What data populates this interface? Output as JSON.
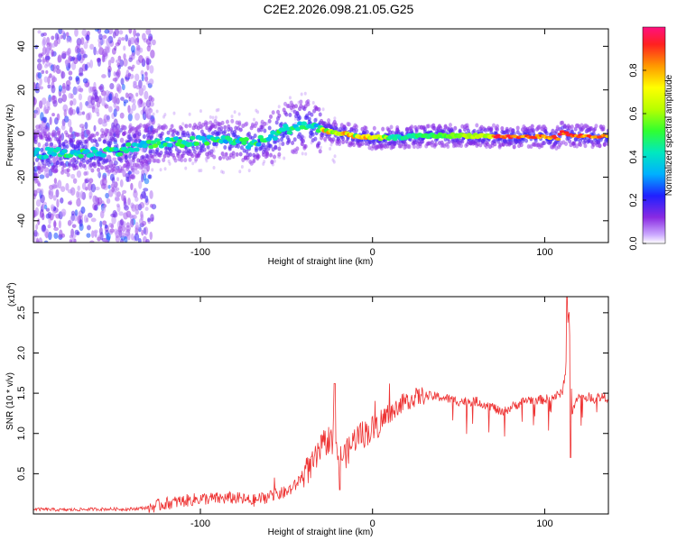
{
  "title": "C2E2.2026.098.21.05.G25",
  "chart_data": [
    {
      "type": "heatmap",
      "title": "C2E2.2026.098.21.05.G25",
      "xlabel": "Height of straight line (km)",
      "ylabel": "Frequency (Hz)",
      "xlim": [
        -197,
        137
      ],
      "ylim": [
        -50,
        48
      ],
      "x_ticks": [
        -100,
        0,
        100
      ],
      "y_ticks": [
        -40,
        -20,
        0,
        20,
        40
      ],
      "x_tick_labels": [
        "-100",
        "0",
        "100"
      ],
      "y_tick_labels": [
        "-40",
        "-20",
        "0",
        "20",
        "40"
      ],
      "colorbar": {
        "label": "Normalized spectral amplitude",
        "range": [
          0,
          1
        ],
        "ticks": [
          0.0,
          0.2,
          0.4,
          0.6,
          0.8
        ],
        "tick_labels": [
          "0.0",
          "0.2",
          "0.4",
          "0.6",
          "0.8"
        ]
      },
      "ridge": {
        "x": [
          -197,
          -170,
          -150,
          -130,
          -110,
          -90,
          -80,
          -70,
          -60,
          -50,
          -40,
          -30,
          -25,
          -20,
          -10,
          0,
          10,
          30,
          60,
          80,
          100,
          108,
          110,
          115,
          137
        ],
        "freq": [
          -9,
          -9,
          -8,
          -5,
          -4,
          -3,
          -3,
          -5,
          -2,
          2,
          4,
          2,
          1,
          0,
          -1,
          -2,
          -2,
          -1,
          -1,
          -1.5,
          -1.5,
          -2,
          1,
          -1,
          -1.5
        ]
      }
    },
    {
      "type": "line",
      "xlabel": "Height of straight line (km)",
      "ylabel": "SNR (10 * v/v)",
      "y_multiplier_label": "(x10",
      "y_multiplier_exp": "4",
      "y_multiplier_close": ")",
      "xlim": [
        -197,
        137
      ],
      "ylim": [
        0,
        2.7
      ],
      "x_ticks": [
        -100,
        0,
        100
      ],
      "y_ticks": [
        0.5,
        1.0,
        1.5,
        2.0,
        2.5
      ],
      "x_tick_labels": [
        "-100",
        "0",
        "100"
      ],
      "y_tick_labels": [
        "0.5",
        "1.0",
        "1.5",
        "2.0",
        "2.5"
      ],
      "series": [
        {
          "name": "SNR",
          "color": "#ee3333",
          "x": [
            -197,
            -180,
            -160,
            -140,
            -130,
            -120,
            -110,
            -100,
            -90,
            -80,
            -70,
            -60,
            -50,
            -45,
            -40,
            -35,
            -30,
            -25,
            -22,
            -20,
            -15,
            -10,
            -5,
            0,
            5,
            10,
            15,
            20,
            25,
            30,
            40,
            50,
            60,
            70,
            75,
            80,
            90,
            100,
            105,
            110,
            112,
            114,
            116,
            118,
            120,
            130,
            137
          ],
          "values": [
            0.06,
            0.05,
            0.06,
            0.06,
            0.08,
            0.13,
            0.16,
            0.19,
            0.19,
            0.2,
            0.16,
            0.22,
            0.27,
            0.35,
            0.5,
            0.6,
            0.8,
            0.95,
            0.8,
            0.7,
            0.75,
            0.95,
            1.0,
            1.05,
            1.15,
            1.25,
            1.35,
            1.4,
            1.45,
            1.47,
            1.45,
            1.4,
            1.4,
            1.33,
            1.25,
            1.32,
            1.42,
            1.42,
            1.45,
            1.5,
            1.75,
            2.6,
            1.2,
            1.45,
            1.45,
            1.45,
            1.45
          ],
          "spikes": [
            {
              "x": -22,
              "value": 1.62
            },
            {
              "x": -19,
              "value": 0.3
            },
            {
              "x": 113,
              "value": 2.7
            },
            {
              "x": 115,
              "value": 0.7
            }
          ]
        }
      ]
    }
  ]
}
